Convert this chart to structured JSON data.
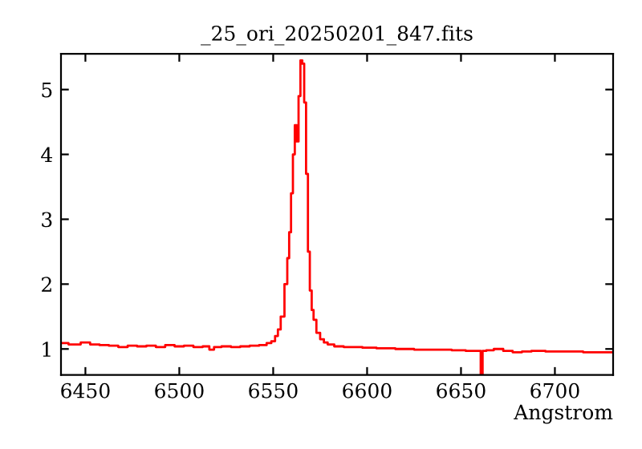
{
  "chart_data": {
    "type": "step",
    "title": "_25_ori_20250201_847.fits",
    "xlabel": "Angstrom",
    "xlim": [
      6437,
      6731
    ],
    "xticks": [
      6450,
      6500,
      6550,
      6600,
      6650,
      6700
    ],
    "ylim": [
      0.6,
      5.55
    ],
    "yticks": [
      1,
      2,
      3,
      4,
      5
    ],
    "grid": false,
    "legend": false,
    "series": [
      {
        "color": "#ff0000",
        "x": [
          6437,
          6445,
          6450,
          6455,
          6460,
          6465,
          6470,
          6475,
          6480,
          6485,
          6490,
          6495,
          6500,
          6505,
          6510,
          6515,
          6517,
          6520,
          6525,
          6530,
          6535,
          6540,
          6545,
          6548,
          6550,
          6552,
          6553,
          6555,
          6557,
          6558,
          6559,
          6560,
          6561,
          6562,
          6563,
          6564,
          6565,
          6566,
          6567,
          6568,
          6569,
          6570,
          6571,
          6572,
          6574,
          6576,
          6578,
          6580,
          6585,
          6590,
          6595,
          6600,
          6610,
          6620,
          6630,
          6640,
          6650,
          6655,
          6660,
          6661,
          6662,
          6665,
          6670,
          6675,
          6680,
          6685,
          6690,
          6700,
          6710,
          6720,
          6731
        ],
        "values": [
          1.09,
          1.07,
          1.1,
          1.07,
          1.06,
          1.05,
          1.03,
          1.05,
          1.04,
          1.05,
          1.03,
          1.06,
          1.04,
          1.05,
          1.03,
          1.04,
          0.99,
          1.03,
          1.04,
          1.03,
          1.04,
          1.05,
          1.06,
          1.09,
          1.12,
          1.2,
          1.3,
          1.5,
          2.0,
          2.4,
          2.8,
          3.4,
          4.0,
          4.45,
          4.2,
          4.9,
          5.45,
          5.4,
          4.8,
          3.7,
          2.5,
          1.9,
          1.6,
          1.45,
          1.25,
          1.15,
          1.1,
          1.07,
          1.04,
          1.03,
          1.03,
          1.02,
          1.01,
          1.0,
          0.99,
          0.99,
          0.98,
          0.97,
          0.97,
          0.6,
          0.97,
          0.98,
          1.0,
          0.97,
          0.95,
          0.96,
          0.97,
          0.96,
          0.96,
          0.95,
          0.95
        ]
      }
    ]
  }
}
